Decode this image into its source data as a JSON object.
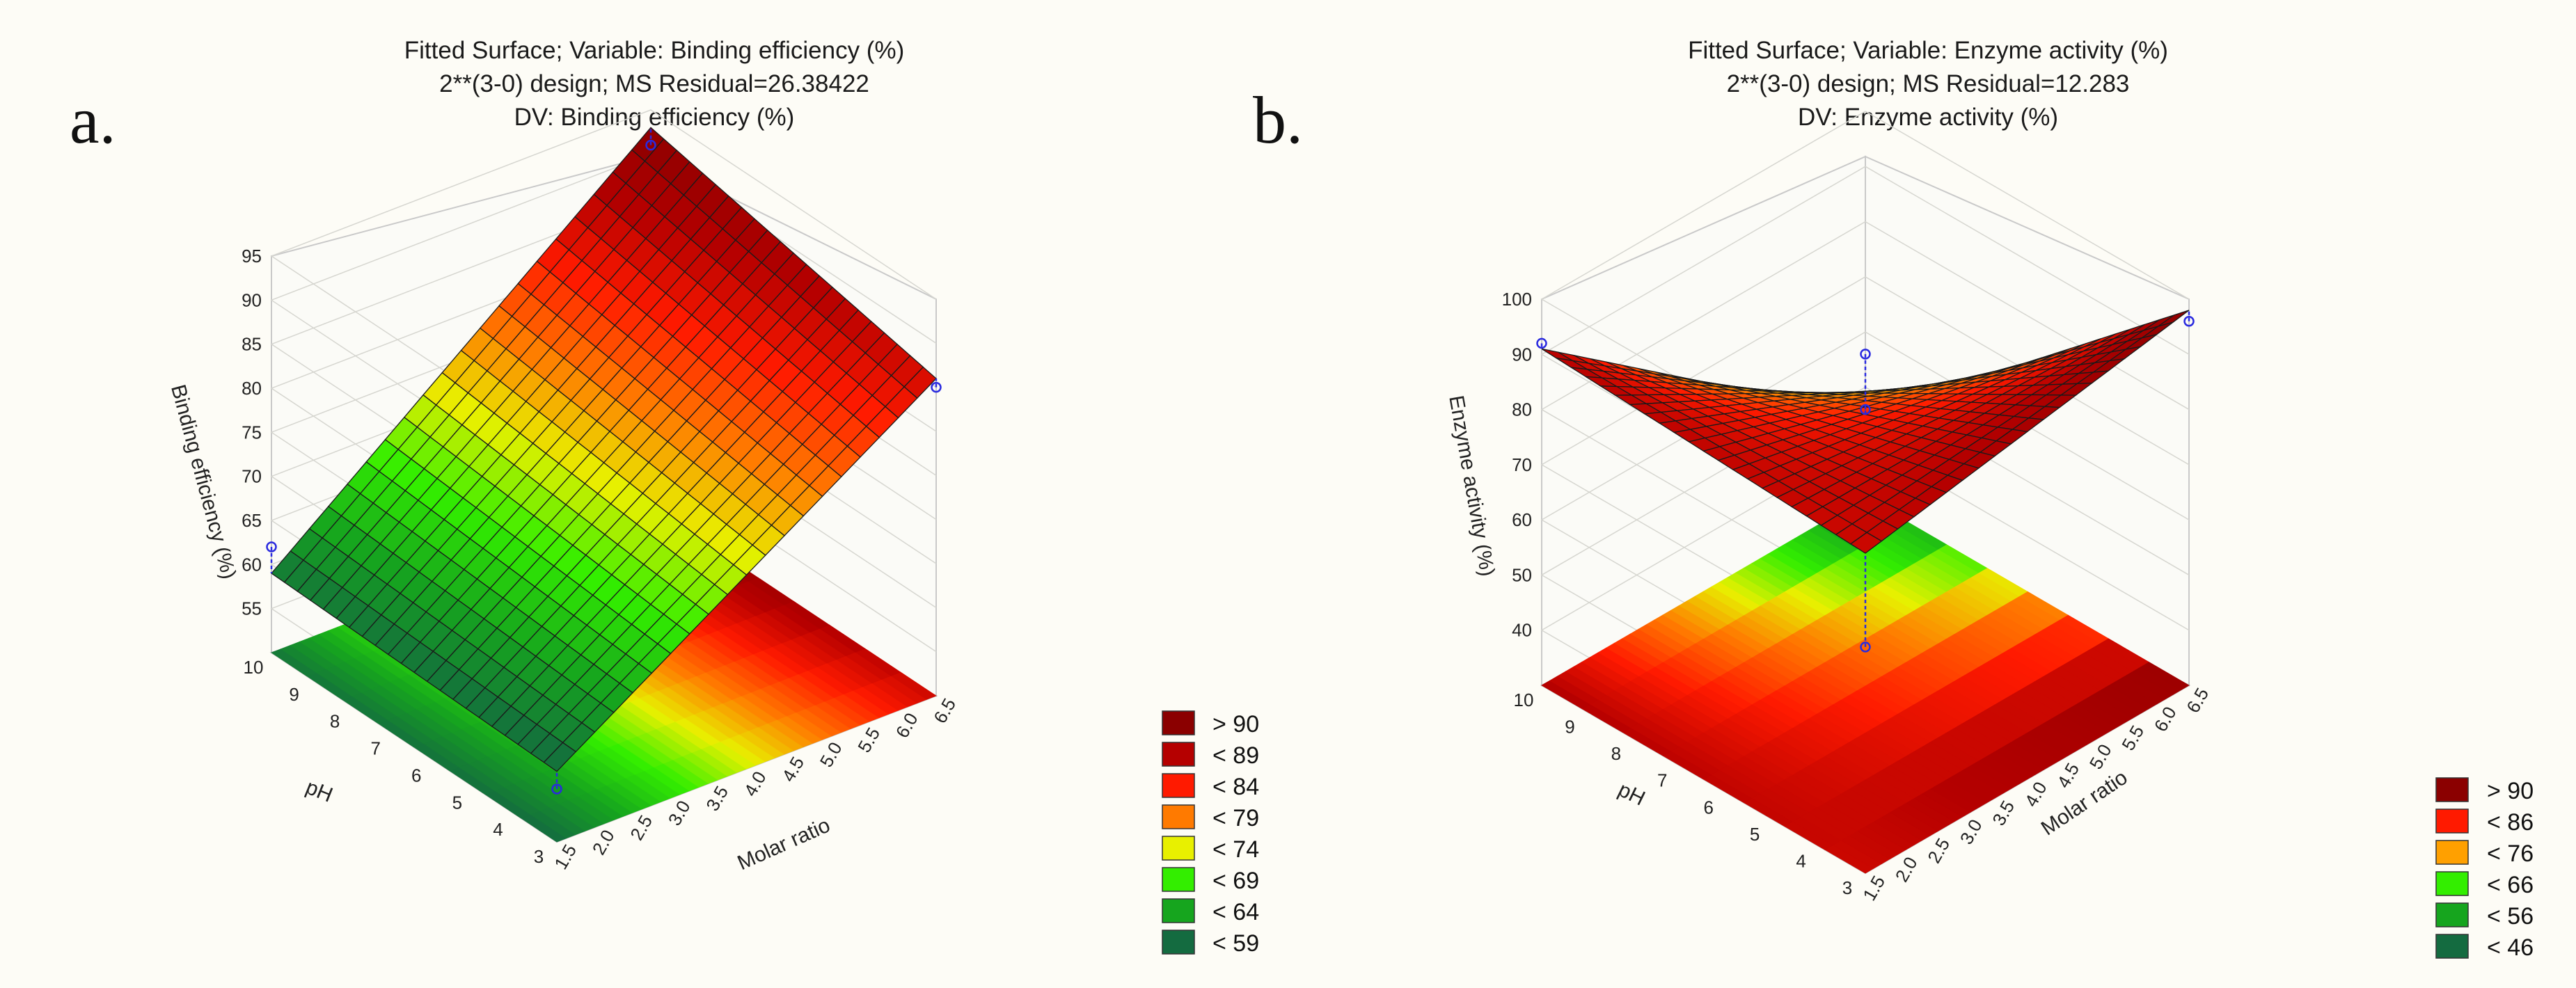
{
  "chart_data": [
    {
      "panel": "a.",
      "type": "surface3d",
      "title": "Fitted Surface; Variable: Binding efficiency (%)",
      "subtitle1": "2**(3-0) design; MS Residual=26.38422",
      "subtitle2": "DV: Binding efficiency (%)",
      "xlabel": "Molar ratio",
      "ylabel": "pH",
      "zlabel": "Binding efficiency (%)",
      "xticks": [
        "1.5",
        "2.0",
        "2.5",
        "3.0",
        "3.5",
        "4.0",
        "4.5",
        "5.0",
        "5.5",
        "6.0",
        "6.5"
      ],
      "yticks": [
        "3",
        "4",
        "5",
        "6",
        "7",
        "8",
        "9",
        "10"
      ],
      "zticks": [
        "55",
        "60",
        "65",
        "70",
        "75",
        "80",
        "85",
        "90",
        "95"
      ],
      "xlim": [
        1.5,
        6.5
      ],
      "ylim": [
        3,
        10
      ],
      "zlim": [
        50,
        95
      ],
      "surface_corners": {
        "x1.5_pH3": 58,
        "x1.5_pH10": 59,
        "x6.5_pH3": 86,
        "x6.5_pH10": 93
      },
      "points": [
        [
          1.5,
          10,
          62
        ],
        [
          1.5,
          3,
          56
        ],
        [
          6.5,
          10,
          91
        ],
        [
          6.5,
          3,
          85
        ]
      ],
      "legend": [
        {
          "label": "> 90",
          "color": "#8b0000"
        },
        {
          "label": "< 89",
          "color": "#b50000"
        },
        {
          "label": "< 84",
          "color": "#ff1a00"
        },
        {
          "label": "< 79",
          "color": "#ff7a00"
        },
        {
          "label": "< 74",
          "color": "#e8f000"
        },
        {
          "label": "< 69",
          "color": "#33ee00"
        },
        {
          "label": "< 64",
          "color": "#16a51e"
        },
        {
          "label": "< 59",
          "color": "#146b40"
        }
      ]
    },
    {
      "panel": "b.",
      "type": "surface3d",
      "title": "Fitted Surface; Variable: Enzyme activity (%)",
      "subtitle1": "2**(3-0) design; MS Residual=12.283",
      "subtitle2": "DV: Enzyme activity (%)",
      "xlabel": "Molar ratio",
      "ylabel": "pH",
      "zlabel": "Enzyme activity (%)",
      "xticks": [
        "1.5",
        "2.0",
        "2.5",
        "3.0",
        "3.5",
        "4.0",
        "4.5",
        "5.0",
        "5.5",
        "6.0",
        "6.5"
      ],
      "yticks": [
        "3",
        "4",
        "5",
        "6",
        "7",
        "8",
        "9",
        "10"
      ],
      "zticks": [
        "40",
        "50",
        "60",
        "70",
        "80",
        "90",
        "100"
      ],
      "xlim": [
        1.5,
        6.5
      ],
      "ylim": [
        3,
        10
      ],
      "zlim": [
        30,
        100
      ],
      "surface_corners": {
        "x1.5_pH3": 88,
        "x1.5_pH10": 91,
        "x6.5_pH3": 98,
        "x6.5_pH10": 45
      },
      "points": [
        [
          1.5,
          10,
          92
        ],
        [
          1.5,
          3,
          71
        ],
        [
          6.5,
          3,
          96
        ],
        [
          6.5,
          10,
          56
        ],
        [
          4.0,
          6.5,
          80
        ]
      ],
      "legend": [
        {
          "label": "> 90",
          "color": "#8b0000"
        },
        {
          "label": "< 86",
          "color": "#ff1a00"
        },
        {
          "label": "< 76",
          "color": "#ffa000"
        },
        {
          "label": "< 66",
          "color": "#33ee00"
        },
        {
          "label": "< 56",
          "color": "#16a51e"
        },
        {
          "label": "< 46",
          "color": "#146b40"
        }
      ]
    }
  ]
}
